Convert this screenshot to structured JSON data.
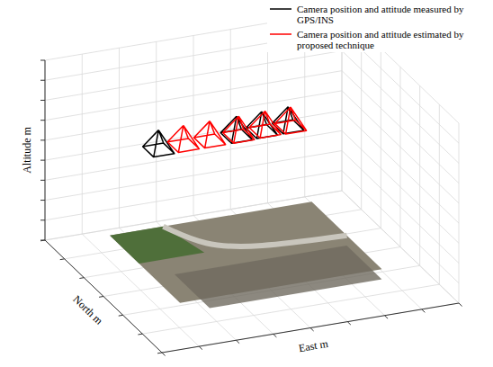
{
  "chart_data": {
    "type": "scatter3d",
    "xlabel": "East m",
    "ylabel": "North m",
    "zlabel": "Altitude m",
    "series": [
      {
        "name": "Camera position and attitude measured by GPS/INS",
        "color": "#000000",
        "marker": "pyramid",
        "x": [
          90,
          195,
          230,
          265
        ],
        "y": [
          180,
          180,
          182,
          181
        ],
        "z": [
          360,
          362,
          361,
          363
        ]
      },
      {
        "name": "Camera position and attitude estimated by proposed technique",
        "color": "#ff0000",
        "marker": "pyramid",
        "x": [
          125,
          160,
          200,
          235,
          270
        ],
        "y": [
          183,
          182,
          184,
          183,
          184
        ],
        "z": [
          358,
          359,
          357,
          360,
          358
        ]
      }
    ],
    "xlim": [
      0,
      400
    ],
    "ylim": [
      0,
      300
    ],
    "zlim": [
      0,
      450
    ],
    "xticks": [
      0,
      50,
      100,
      150,
      200,
      250,
      300,
      350,
      400
    ],
    "yticks": [
      0,
      50,
      100,
      150,
      200,
      250,
      300
    ],
    "zticks": [
      0,
      50,
      100,
      150,
      200,
      250,
      300,
      350,
      400,
      450
    ],
    "grid": true,
    "tick_labels": false,
    "legend": "upper right"
  }
}
